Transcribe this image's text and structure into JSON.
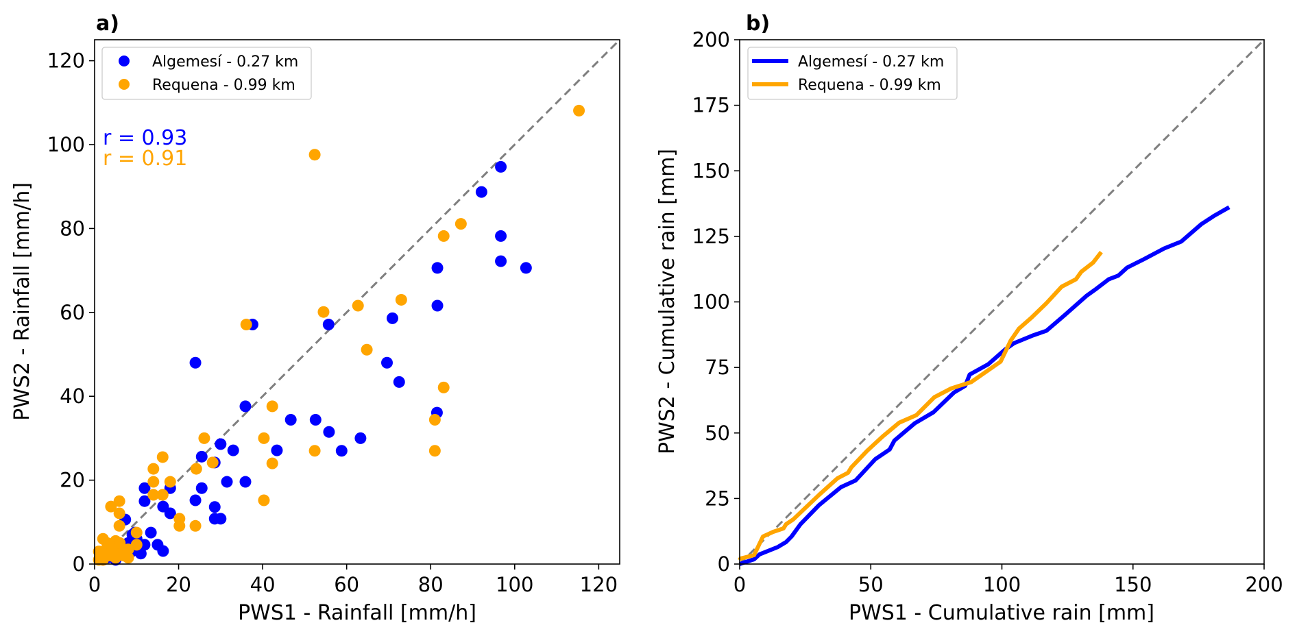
{
  "chart_data": [
    {
      "panel": "a",
      "type": "scatter",
      "title": "a)",
      "xlabel": "PWS1 - Rainfall [mm/h]",
      "ylabel": "PWS2 - Rainfall [mm/h]",
      "xlim": [
        0,
        125
      ],
      "ylim": [
        0,
        125
      ],
      "xticks": [
        0,
        20,
        40,
        60,
        80,
        100,
        120
      ],
      "yticks": [
        0,
        20,
        40,
        60,
        80,
        100,
        120
      ],
      "grid": false,
      "legend_position": "top-left",
      "reference_line": {
        "name": "1:1 line",
        "style": "dashed",
        "color": "#7f7f7f"
      },
      "annotations": [
        {
          "text": "r = 0.93",
          "color": "#0000ff"
        },
        {
          "text": "r = 0.91",
          "color": "#ffa500"
        }
      ],
      "series": [
        {
          "name": "Algemesí - 0.27 km",
          "color": "#0000ff",
          "points": [
            [
              96.7,
              94.7
            ],
            [
              92.1,
              88.7
            ],
            [
              96.7,
              78.2
            ],
            [
              96.7,
              72.2
            ],
            [
              102.7,
              70.6
            ],
            [
              81.6,
              70.6
            ],
            [
              81.6,
              61.6
            ],
            [
              70.9,
              58.6
            ],
            [
              55.7,
              57.1
            ],
            [
              37.6,
              57.1
            ],
            [
              24,
              48
            ],
            [
              69.6,
              48
            ],
            [
              72.5,
              43.4
            ],
            [
              35.9,
              37.6
            ],
            [
              81.5,
              36.1
            ],
            [
              46.7,
              34.4
            ],
            [
              52.6,
              34.4
            ],
            [
              55.8,
              31.5
            ],
            [
              63.3,
              30
            ],
            [
              30,
              28.6
            ],
            [
              33,
              27.1
            ],
            [
              43.4,
              27.1
            ],
            [
              58.8,
              27
            ],
            [
              25.5,
              25.6
            ],
            [
              28.6,
              24.2
            ],
            [
              31.5,
              19.6
            ],
            [
              35.9,
              19.6
            ],
            [
              25.5,
              18.1
            ],
            [
              11.9,
              18.1
            ],
            [
              18,
              18.1
            ],
            [
              24,
              15.2
            ],
            [
              11.9,
              15
            ],
            [
              28.6,
              13.6
            ],
            [
              16.3,
              13.7
            ],
            [
              18,
              12.1
            ],
            [
              28.6,
              10.8
            ],
            [
              30,
              10.8
            ],
            [
              7.3,
              10.6
            ],
            [
              9.6,
              7.5
            ],
            [
              13.4,
              7.5
            ],
            [
              11.9,
              4.6
            ],
            [
              15,
              4.6
            ],
            [
              8,
              4.6
            ],
            [
              16.3,
              3.1
            ],
            [
              9,
              3.1
            ],
            [
              2,
              1
            ],
            [
              4,
              2
            ],
            [
              6,
              2.5
            ],
            [
              8,
              5
            ],
            [
              9,
              7
            ],
            [
              10,
              6
            ],
            [
              7,
              3
            ],
            [
              11,
              2.5
            ],
            [
              5,
              1
            ],
            [
              3,
              1.5
            ]
          ]
        },
        {
          "name": "Requena - 0.99 km",
          "color": "#ffa500",
          "points": [
            [
              115.3,
              108.1
            ],
            [
              52.4,
              97.6
            ],
            [
              87.2,
              81.1
            ],
            [
              83.1,
              78.2
            ],
            [
              73,
              63
            ],
            [
              62.7,
              61.6
            ],
            [
              54.5,
              60.1
            ],
            [
              36.1,
              57.1
            ],
            [
              64.8,
              51.1
            ],
            [
              83.1,
              42.1
            ],
            [
              42.3,
              37.6
            ],
            [
              81,
              34.4
            ],
            [
              40.3,
              30
            ],
            [
              26.1,
              30
            ],
            [
              52.4,
              27
            ],
            [
              81,
              27
            ],
            [
              42.3,
              24
            ],
            [
              28.1,
              24.2
            ],
            [
              24.2,
              22.7
            ],
            [
              16.2,
              25.5
            ],
            [
              14,
              22.7
            ],
            [
              14,
              19.6
            ],
            [
              18,
              19.6
            ],
            [
              14,
              16.5
            ],
            [
              16.2,
              16.5
            ],
            [
              40.3,
              15.2
            ],
            [
              5.9,
              15
            ],
            [
              3.9,
              13.7
            ],
            [
              5.9,
              12.1
            ],
            [
              20.2,
              10.8
            ],
            [
              5.9,
              9.1
            ],
            [
              20.2,
              9.1
            ],
            [
              24,
              9.1
            ],
            [
              10,
              7.5
            ],
            [
              2,
              6
            ],
            [
              10,
              4.6
            ],
            [
              1,
              1
            ],
            [
              2,
              3
            ],
            [
              3,
              2
            ],
            [
              4,
              4
            ],
            [
              5,
              1.5
            ],
            [
              6,
              3
            ],
            [
              7,
              2
            ],
            [
              8,
              3.5
            ],
            [
              1,
              3
            ],
            [
              3,
              5
            ],
            [
              5,
              5.5
            ],
            [
              2,
              1
            ],
            [
              6,
              5
            ],
            [
              8,
              1.5
            ],
            [
              4,
              2
            ]
          ]
        }
      ]
    },
    {
      "panel": "b",
      "type": "line",
      "title": "b)",
      "xlabel": "PWS1 - Cumulative rain [mm]",
      "ylabel": "PWS2 - Cumulative rain [mm]",
      "xlim": [
        0,
        200
      ],
      "ylim": [
        0,
        200
      ],
      "xticks": [
        0,
        50,
        100,
        150,
        200
      ],
      "yticks": [
        0,
        25,
        50,
        75,
        100,
        125,
        150,
        175,
        200
      ],
      "grid": false,
      "legend_position": "top-left",
      "reference_line": {
        "name": "1:1 line",
        "style": "dashed",
        "color": "#7f7f7f"
      },
      "series": [
        {
          "name": "Algemesí - 0.27 km",
          "color": "#0000ff",
          "points": [
            [
              0,
              0
            ],
            [
              0.8,
              0.3
            ],
            [
              5.5,
              1.8
            ],
            [
              7.6,
              3.7
            ],
            [
              14.6,
              6.5
            ],
            [
              17.7,
              8.4
            ],
            [
              19.8,
              10.5
            ],
            [
              23.2,
              15.2
            ],
            [
              30.3,
              22.5
            ],
            [
              38.6,
              29.3
            ],
            [
              44.2,
              31.9
            ],
            [
              51.7,
              40
            ],
            [
              57.2,
              43.7
            ],
            [
              59,
              47.1
            ],
            [
              66.8,
              53.7
            ],
            [
              73.9,
              57.9
            ],
            [
              81.7,
              65.4
            ],
            [
              86,
              68
            ],
            [
              87.7,
              72.3
            ],
            [
              94.8,
              76.2
            ],
            [
              101.3,
              81.9
            ],
            [
              104.7,
              84.3
            ],
            [
              111.8,
              87.2
            ],
            [
              117,
              89
            ],
            [
              124,
              95
            ],
            [
              132.4,
              102.4
            ],
            [
              136,
              105
            ],
            [
              140.7,
              108.6
            ],
            [
              144.4,
              110
            ],
            [
              147.8,
              113.1
            ],
            [
              154,
              116.2
            ],
            [
              161.9,
              120.4
            ],
            [
              168.4,
              123
            ],
            [
              176,
              129.6
            ],
            [
              181.2,
              133
            ],
            [
              186.7,
              136.1
            ]
          ]
        },
        {
          "name": "Requena - 0.99 km",
          "color": "#ffa500",
          "points": [
            [
              0,
              1.5
            ],
            [
              0.3,
              2.1
            ],
            [
              5.5,
              3.4
            ],
            [
              8.9,
              10.5
            ],
            [
              12.8,
              12.3
            ],
            [
              16.7,
              13.6
            ],
            [
              17.7,
              15.2
            ],
            [
              20.4,
              17
            ],
            [
              30.3,
              26.4
            ],
            [
              37.3,
              32.7
            ],
            [
              41.3,
              34.8
            ],
            [
              42.6,
              36.9
            ],
            [
              48.6,
              43.2
            ],
            [
              54.6,
              48.7
            ],
            [
              60.8,
              53.9
            ],
            [
              67.4,
              56.8
            ],
            [
              74.2,
              63.6
            ],
            [
              80.7,
              67
            ],
            [
              88.3,
              69.4
            ],
            [
              99.5,
              77.2
            ],
            [
              103.4,
              85.3
            ],
            [
              106.5,
              89.8
            ],
            [
              111.5,
              94.2
            ],
            [
              117,
              99.5
            ],
            [
              122.8,
              105.8
            ],
            [
              128.2,
              108.6
            ],
            [
              130.3,
              111.5
            ],
            [
              134.8,
              115
            ],
            [
              137.9,
              119
            ]
          ]
        }
      ]
    }
  ]
}
